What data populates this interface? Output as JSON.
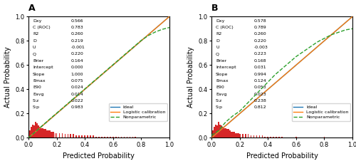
{
  "chart_data": [
    {
      "type": "line",
      "title": "A",
      "xlabel": "Predicted Probability",
      "ylabel": "Actual Probability",
      "xlim": [
        0.0,
        1.0
      ],
      "ylim": [
        0.0,
        1.0
      ],
      "xticks": [
        {
          "value": 0.0,
          "label": "0.0"
        },
        {
          "value": 0.2,
          "label": "0.2"
        },
        {
          "value": 0.4,
          "label": "0.4"
        },
        {
          "value": 0.6,
          "label": "0.6"
        },
        {
          "value": 0.8,
          "label": "0.8"
        },
        {
          "value": 1.0,
          "label": "1.0"
        }
      ],
      "yticks": [
        {
          "value": 0.0,
          "label": "0.0"
        },
        {
          "value": 0.2,
          "label": "0.2"
        },
        {
          "value": 0.4,
          "label": "0.4"
        },
        {
          "value": 0.6,
          "label": "0.6"
        },
        {
          "value": 0.8,
          "label": "0.8"
        },
        {
          "value": 1.0,
          "label": "1.0"
        }
      ],
      "legend": "lower right",
      "series": [
        {
          "name": "Ideal",
          "x": [
            0,
            1
          ],
          "values": [
            0,
            1
          ],
          "line_style": "solid"
        },
        {
          "name": "Logistic calibration",
          "x": [
            0,
            1
          ],
          "values": [
            0,
            1
          ],
          "line_style": "solid"
        },
        {
          "name": "Nonparametric",
          "line_style": "dashed",
          "x": [
            0.0,
            0.05,
            0.1,
            0.15,
            0.2,
            0.25,
            0.3,
            0.35,
            0.4,
            0.45,
            0.5,
            0.55,
            0.6,
            0.65,
            0.7,
            0.75,
            0.8,
            0.85,
            0.9,
            0.95,
            1.0
          ],
          "values": [
            0.0,
            0.05,
            0.102,
            0.153,
            0.203,
            0.253,
            0.303,
            0.353,
            0.403,
            0.453,
            0.503,
            0.553,
            0.603,
            0.653,
            0.703,
            0.753,
            0.803,
            0.843,
            0.873,
            0.895,
            0.91
          ]
        },
        {
          "type": "bar",
          "x": [
            0.01,
            0.02,
            0.03,
            0.04,
            0.05,
            0.06,
            0.07,
            0.08,
            0.09,
            0.1,
            0.11,
            0.12,
            0.13,
            0.14,
            0.15,
            0.16,
            0.17,
            0.18,
            0.19,
            0.2,
            0.22,
            0.24,
            0.26,
            0.28,
            0.3,
            0.32,
            0.34,
            0.36,
            0.38,
            0.4,
            0.42,
            0.44,
            0.46,
            0.48,
            0.5,
            0.52,
            0.54,
            0.56,
            0.58,
            0.6,
            0.62,
            0.64,
            0.66,
            0.68,
            0.7,
            0.72,
            0.74,
            0.76,
            0.78,
            0.8,
            0.85,
            0.9,
            0.95
          ],
          "values": [
            0.06,
            0.09,
            0.11,
            0.1,
            0.13,
            0.12,
            0.1,
            0.09,
            0.08,
            0.08,
            0.07,
            0.07,
            0.06,
            0.06,
            0.06,
            0.05,
            0.05,
            0.05,
            0.04,
            0.04,
            0.04,
            0.04,
            0.03,
            0.03,
            0.03,
            0.03,
            0.02,
            0.02,
            0.02,
            0.02,
            0.02,
            0.02,
            0.02,
            0.01,
            0.01,
            0.01,
            0.01,
            0.01,
            0.01,
            0.01,
            0.01,
            0.01,
            0.01,
            0.01,
            0.01,
            0.01,
            0.01,
            0.01,
            0.005,
            0.005,
            0.005,
            0.005,
            0.005
          ]
        }
      ],
      "annotations": [
        [
          "Dxy",
          "0.566"
        ],
        [
          "C (ROC)",
          "0.783"
        ],
        [
          "R2",
          "0.260"
        ],
        [
          "D",
          "0.219"
        ],
        [
          "U",
          "-0.001"
        ],
        [
          "Q",
          "0.220"
        ],
        [
          "Brier",
          "0.164"
        ],
        [
          "Intercept",
          "0.000"
        ],
        [
          "Slope",
          "1.000"
        ],
        [
          "Emax",
          "0.075"
        ],
        [
          "E90",
          "0.024"
        ],
        [
          "Eavg",
          "0.014"
        ],
        [
          "S:z",
          "0.022"
        ],
        [
          "S:p",
          "0.983"
        ]
      ]
    },
    {
      "type": "line",
      "title": "B",
      "xlabel": "Predicted Probability",
      "ylabel": "Actual Probability",
      "xlim": [
        0.0,
        1.0
      ],
      "ylim": [
        0.0,
        1.0
      ],
      "xticks": [
        {
          "value": 0.0,
          "label": "0.0"
        },
        {
          "value": 0.2,
          "label": "0.2"
        },
        {
          "value": 0.4,
          "label": "0.4"
        },
        {
          "value": 0.6,
          "label": "0.6"
        },
        {
          "value": 0.8,
          "label": "0.8"
        },
        {
          "value": 1.0,
          "label": "1.0"
        }
      ],
      "yticks": [
        {
          "value": 0.0,
          "label": "0.0"
        },
        {
          "value": 0.2,
          "label": "0.2"
        },
        {
          "value": 0.4,
          "label": "0.4"
        },
        {
          "value": 0.6,
          "label": "0.6"
        },
        {
          "value": 0.8,
          "label": "0.8"
        },
        {
          "value": 1.0,
          "label": "1.0"
        }
      ],
      "legend": "lower right",
      "series": [
        {
          "name": "Ideal",
          "x": [
            0,
            1
          ],
          "values": [
            0,
            1
          ],
          "line_style": "solid"
        },
        {
          "name": "Logistic calibration",
          "x": [
            0,
            1
          ],
          "values": [
            0,
            1
          ],
          "line_style": "solid"
        },
        {
          "name": "Nonparametric",
          "line_style": "dashed",
          "x": [
            0.0,
            0.05,
            0.1,
            0.15,
            0.2,
            0.25,
            0.3,
            0.35,
            0.4,
            0.45,
            0.5,
            0.55,
            0.6,
            0.65,
            0.7,
            0.75,
            0.8,
            0.85,
            0.9,
            0.95,
            1.0
          ],
          "values": [
            0.02,
            0.06,
            0.13,
            0.18,
            0.22,
            0.28,
            0.34,
            0.4,
            0.46,
            0.52,
            0.57,
            0.62,
            0.67,
            0.71,
            0.75,
            0.79,
            0.82,
            0.85,
            0.87,
            0.89,
            0.9
          ]
        },
        {
          "type": "bar",
          "x": [
            0.01,
            0.02,
            0.03,
            0.04,
            0.05,
            0.06,
            0.07,
            0.08,
            0.09,
            0.1,
            0.11,
            0.12,
            0.13,
            0.14,
            0.15,
            0.16,
            0.17,
            0.18,
            0.19,
            0.2,
            0.22,
            0.24,
            0.26,
            0.28,
            0.3,
            0.32,
            0.34,
            0.36,
            0.38,
            0.4,
            0.42,
            0.44,
            0.46,
            0.48,
            0.5,
            0.55,
            0.6,
            0.65,
            0.7,
            0.8,
            0.9
          ],
          "values": [
            0.06,
            0.09,
            0.11,
            0.1,
            0.13,
            0.11,
            0.1,
            0.09,
            0.08,
            0.08,
            0.07,
            0.07,
            0.06,
            0.05,
            0.05,
            0.05,
            0.04,
            0.04,
            0.04,
            0.03,
            0.03,
            0.03,
            0.03,
            0.02,
            0.02,
            0.02,
            0.02,
            0.02,
            0.01,
            0.01,
            0.01,
            0.01,
            0.01,
            0.01,
            0.01,
            0.005,
            0.01,
            0.005,
            0.005,
            0.01,
            0.005
          ]
        }
      ],
      "annotations": [
        [
          "Dxy",
          "0.578"
        ],
        [
          "C (ROC)",
          "0.789"
        ],
        [
          "R2",
          "0.260"
        ],
        [
          "D",
          "0.220"
        ],
        [
          "U",
          "-0.003"
        ],
        [
          "Q",
          "0.223"
        ],
        [
          "Brier",
          "0.168"
        ],
        [
          "Intercept",
          "0.031"
        ],
        [
          "Slope",
          "0.994"
        ],
        [
          "Emax",
          "0.124"
        ],
        [
          "E90",
          "0.053"
        ],
        [
          "Eavg",
          "0.023"
        ],
        [
          "S:z",
          "0.238"
        ],
        [
          "S:p",
          "0.812"
        ]
      ]
    }
  ]
}
